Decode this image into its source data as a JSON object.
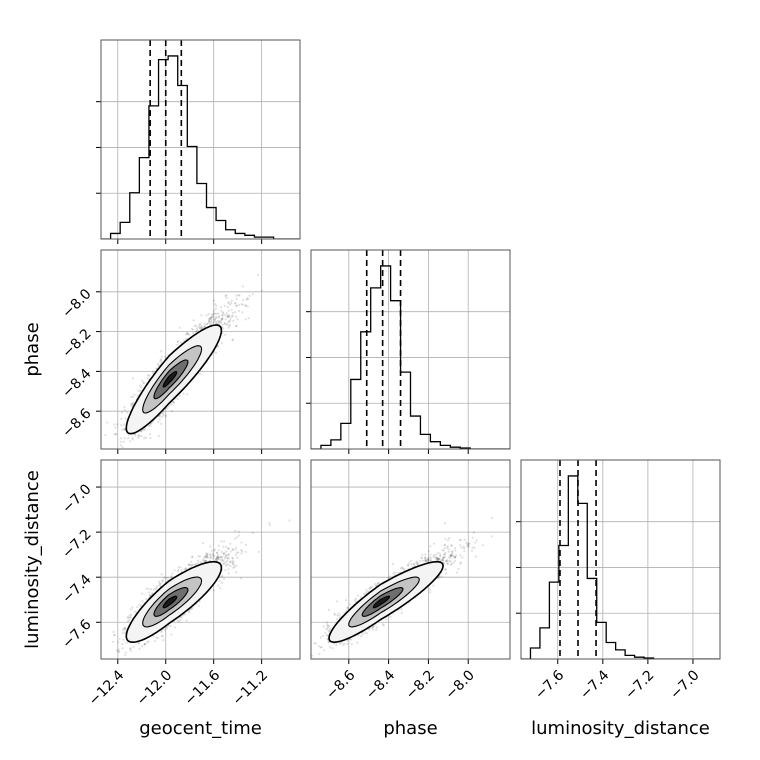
{
  "chart_data": {
    "type": "corner",
    "parameters": [
      "geocent_time",
      "phase",
      "luminosity_distance"
    ],
    "axes": {
      "geocent_time": {
        "label": "geocent_time",
        "range": [
          -12.54,
          -10.88
        ],
        "ticks": [
          -12.4,
          -12.0,
          -11.6,
          -11.2
        ],
        "tick_labels": [
          "−12.4",
          "−12.0",
          "−11.6",
          "−11.2"
        ]
      },
      "phase": {
        "label": "phase",
        "range": [
          -8.79,
          -7.79
        ],
        "ticks": [
          -8.6,
          -8.4,
          -8.2,
          -8.0
        ],
        "tick_labels": [
          "−8.6",
          "−8.4",
          "−8.2",
          "−8.0"
        ]
      },
      "luminosity_distance": {
        "label": "luminosity_distance",
        "range": [
          -7.763,
          -6.88
        ],
        "ticks": [
          -7.6,
          -7.4,
          -7.2,
          -7.0
        ],
        "tick_labels": [
          "−7.6",
          "−7.4",
          "−7.2",
          "−7.0"
        ]
      }
    },
    "grid": true,
    "histograms": {
      "geocent_time": {
        "bin_start": -12.54,
        "bin_width": 0.08,
        "counts": [
          0,
          0.03,
          0.09,
          0.25,
          0.44,
          0.72,
          0.97,
          0.99,
          0.83,
          0.5,
          0.3,
          0.17,
          0.1,
          0.05,
          0.03,
          0.02,
          0.01,
          0.01,
          0,
          0,
          0
        ],
        "quantiles": [
          -12.13,
          -12.0,
          -11.87
        ]
      },
      "phase": {
        "bin_start": -8.79,
        "bin_width": 0.05,
        "counts": [
          0,
          0.02,
          0.05,
          0.14,
          0.38,
          0.64,
          0.88,
          1.0,
          0.81,
          0.42,
          0.18,
          0.08,
          0.04,
          0.02,
          0.01,
          0.005,
          0,
          0,
          0,
          0
        ],
        "quantiles": [
          -8.51,
          -8.43,
          -8.34
        ]
      },
      "luminosity_distance": {
        "bin_start": -7.763,
        "bin_width": 0.042,
        "counts": [
          0,
          0.06,
          0.17,
          0.42,
          0.62,
          1.0,
          0.85,
          0.44,
          0.2,
          0.09,
          0.05,
          0.02,
          0.01,
          0.005,
          0,
          0,
          0,
          0,
          0,
          0,
          0
        ],
        "quantiles": [
          -7.59,
          -7.51,
          -7.43
        ]
      }
    },
    "pairs": [
      {
        "x": "geocent_time",
        "y": "phase",
        "center": [
          -11.97,
          -8.44
        ],
        "sigma": [
          0.18,
          0.13
        ],
        "rho": 0.9
      },
      {
        "x": "geocent_time",
        "y": "luminosity_distance",
        "center": [
          -11.97,
          -7.51
        ],
        "sigma": [
          0.18,
          0.085
        ],
        "rho": 0.85
      },
      {
        "x": "phase",
        "y": "luminosity_distance",
        "center": [
          -8.44,
          -7.51
        ],
        "sigma": [
          0.13,
          0.085
        ],
        "rho": 0.9
      }
    ]
  }
}
